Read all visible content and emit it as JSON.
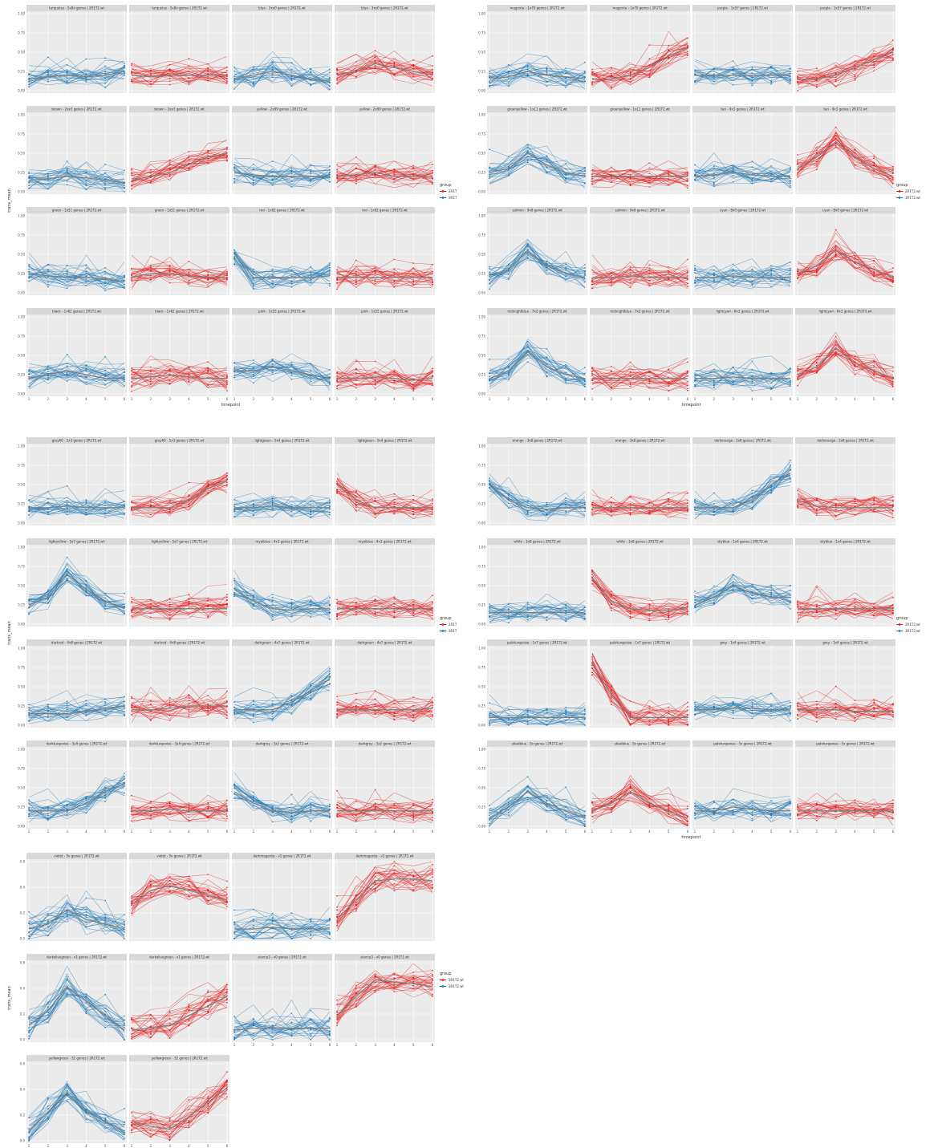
{
  "chart_data": [
    {
      "type": "line",
      "xlabel": "timepoint",
      "ylabel": "trans_mean",
      "x": [
        1,
        2,
        3,
        4,
        5,
        6
      ],
      "ylim": [
        0,
        1
      ],
      "yticks": [
        "0.00",
        "0.25",
        "0.50",
        "0.75",
        "1.00"
      ],
      "legend": {
        "title": "group",
        "entries": [
          "2R1T",
          "3R1T"
        ]
      },
      "panels": [
        {
          "label": "turquoise - 5x8x genes | 2R1T2.wt",
          "group": 1,
          "profile": [
            0.15,
            0.18,
            0.2,
            0.18,
            0.2,
            0.25
          ]
        },
        {
          "label": "turquoise - 5x8x genes | 2R1T2.wt",
          "group": 0,
          "profile": [
            0.2,
            0.18,
            0.2,
            0.2,
            0.2,
            0.2
          ]
        },
        {
          "label": "blue - 3xx0 genes | 2R1T2.wt",
          "group": 1,
          "profile": [
            0.15,
            0.2,
            0.25,
            0.2,
            0.15,
            0.12
          ]
        },
        {
          "label": "blue - 3xx0 genes | 2R1T2.wt",
          "group": 0,
          "profile": [
            0.2,
            0.25,
            0.35,
            0.3,
            0.25,
            0.2
          ]
        },
        {
          "label": "brown - 2xx3 genes | 2R1T2.wt",
          "group": 1,
          "profile": [
            0.15,
            0.17,
            0.2,
            0.18,
            0.15,
            0.12
          ]
        },
        {
          "label": "brown - 2xx3 genes | 2R1T2.wt",
          "group": 0,
          "profile": [
            0.15,
            0.2,
            0.25,
            0.35,
            0.45,
            0.5
          ]
        },
        {
          "label": "yellow - 2x99 genes | 2R1T2.wt",
          "group": 1,
          "profile": [
            0.25,
            0.22,
            0.2,
            0.2,
            0.2,
            0.2
          ]
        },
        {
          "label": "yellow - 2x99 genes | 2R1T2.wt",
          "group": 0,
          "profile": [
            0.2,
            0.22,
            0.25,
            0.2,
            0.2,
            0.2
          ]
        },
        {
          "label": "green - 1x51 genes | 2R1T2.wt",
          "group": 1,
          "profile": [
            0.25,
            0.22,
            0.2,
            0.2,
            0.18,
            0.15
          ]
        },
        {
          "label": "green - 1x51 genes | 2R1T2.wt",
          "group": 0,
          "profile": [
            0.2,
            0.25,
            0.25,
            0.22,
            0.2,
            0.2
          ]
        },
        {
          "label": "red - 1x62 genes | 2R1T2.wt",
          "group": 1,
          "profile": [
            0.5,
            0.2,
            0.2,
            0.2,
            0.2,
            0.22
          ]
        },
        {
          "label": "red - 1x62 genes | 2R1T2.wt",
          "group": 0,
          "profile": [
            0.2,
            0.2,
            0.2,
            0.2,
            0.2,
            0.2
          ]
        },
        {
          "label": "black - 1x62 genes | 2R1T2.wt",
          "group": 1,
          "profile": [
            0.2,
            0.25,
            0.3,
            0.25,
            0.2,
            0.2
          ]
        },
        {
          "label": "black - 1x62 genes | 2R1T2.wt",
          "group": 0,
          "profile": [
            0.2,
            0.22,
            0.25,
            0.22,
            0.2,
            0.2
          ]
        },
        {
          "label": "pink - 1x55 genes | 2R1T2.wt",
          "group": 1,
          "profile": [
            0.3,
            0.3,
            0.35,
            0.3,
            0.25,
            0.2
          ]
        },
        {
          "label": "pink - 1x55 genes | 2R1T2.wt",
          "group": 0,
          "profile": [
            0.2,
            0.2,
            0.22,
            0.2,
            0.18,
            0.2
          ]
        }
      ]
    },
    {
      "type": "line",
      "xlabel": "timepoint",
      "ylabel": "",
      "x": [
        1,
        2,
        3,
        4,
        5,
        6
      ],
      "ylim": [
        0,
        1
      ],
      "yticks": [
        "0.00",
        "0.25",
        "0.50",
        "0.75",
        "1.00"
      ],
      "legend": {
        "title": "group",
        "entries": [
          "2R1T2.wt",
          "3R1T2.wt"
        ]
      },
      "panels": [
        {
          "label": "magenta - 1x70 genes | 2R1T2.wt",
          "group": 1,
          "profile": [
            0.15,
            0.18,
            0.25,
            0.2,
            0.18,
            0.15
          ]
        },
        {
          "label": "magenta - 1x70 genes | 2R1T2.wt",
          "group": 0,
          "profile": [
            0.15,
            0.15,
            0.2,
            0.3,
            0.45,
            0.55
          ]
        },
        {
          "label": "purple - 1x57 genes | 2R1T2.wt",
          "group": 1,
          "profile": [
            0.2,
            0.2,
            0.2,
            0.2,
            0.2,
            0.2
          ]
        },
        {
          "label": "purple - 1x57 genes | 2R1T2.wt",
          "group": 0,
          "profile": [
            0.15,
            0.15,
            0.2,
            0.3,
            0.4,
            0.5
          ]
        },
        {
          "label": "greenyellow - 1x11 genes | 2R1T2.wt",
          "group": 1,
          "profile": [
            0.25,
            0.3,
            0.5,
            0.35,
            0.25,
            0.2
          ]
        },
        {
          "label": "greenyellow - 1x11 genes | 2R1T2.wt",
          "group": 0,
          "profile": [
            0.2,
            0.2,
            0.2,
            0.2,
            0.2,
            0.2
          ]
        },
        {
          "label": "tan - 9x1 genes | 2R1T2.wt",
          "group": 1,
          "profile": [
            0.2,
            0.22,
            0.25,
            0.22,
            0.2,
            0.2
          ]
        },
        {
          "label": "tan - 9x1 genes | 2R1T2.wt",
          "group": 0,
          "profile": [
            0.3,
            0.45,
            0.65,
            0.45,
            0.3,
            0.2
          ]
        },
        {
          "label": "salmon - 9x8 genes | 2R1T2.wt",
          "group": 1,
          "profile": [
            0.2,
            0.3,
            0.55,
            0.35,
            0.25,
            0.2
          ]
        },
        {
          "label": "salmon - 9x8 genes | 2R1T2.wt",
          "group": 0,
          "profile": [
            0.2,
            0.2,
            0.22,
            0.2,
            0.2,
            0.2
          ]
        },
        {
          "label": "cyan - 8x0 genes | 2R1T2.wt",
          "group": 1,
          "profile": [
            0.2,
            0.2,
            0.22,
            0.2,
            0.2,
            0.2
          ]
        },
        {
          "label": "cyan - 8x0 genes | 2R1T2.wt",
          "group": 0,
          "profile": [
            0.25,
            0.35,
            0.55,
            0.4,
            0.3,
            0.2
          ]
        },
        {
          "label": "midnightblue - 7x2 genes | 2R1T2.wt",
          "group": 1,
          "profile": [
            0.2,
            0.3,
            0.55,
            0.35,
            0.25,
            0.2
          ]
        },
        {
          "label": "midnightblue - 7x2 genes | 2R1T2.wt",
          "group": 0,
          "profile": [
            0.2,
            0.2,
            0.2,
            0.2,
            0.2,
            0.2
          ]
        },
        {
          "label": "lightcyan - 6x3 genes | 2R1T2.wt",
          "group": 1,
          "profile": [
            0.2,
            0.2,
            0.22,
            0.2,
            0.2,
            0.2
          ]
        },
        {
          "label": "lightcyan - 6x3 genes | 2R1T2.wt",
          "group": 0,
          "profile": [
            0.25,
            0.35,
            0.6,
            0.4,
            0.3,
            0.2
          ]
        }
      ]
    },
    {
      "type": "line",
      "xlabel": "",
      "ylabel": "trans_mean",
      "x": [
        1,
        2,
        3,
        4,
        5,
        6
      ],
      "ylim": [
        0,
        1
      ],
      "yticks": [
        "0.00",
        "0.25",
        "0.50",
        "0.75",
        "1.00"
      ],
      "legend": {
        "title": "group",
        "entries": [
          "2R1T",
          "3R1T"
        ]
      },
      "panels": [
        {
          "label": "grey60 - 5x3 genes | 2R1T2.wt",
          "group": 1,
          "profile": [
            0.2,
            0.2,
            0.22,
            0.2,
            0.2,
            0.2
          ]
        },
        {
          "label": "grey60 - 5x3 genes | 2R1T2.wt",
          "group": 0,
          "profile": [
            0.2,
            0.2,
            0.2,
            0.3,
            0.45,
            0.55
          ]
        },
        {
          "label": "lightgreen - 5x4 genes | 2R1T2.wt",
          "group": 1,
          "profile": [
            0.2,
            0.2,
            0.22,
            0.2,
            0.2,
            0.2
          ]
        },
        {
          "label": "lightgreen - 5x4 genes | 2R1T2.wt",
          "group": 0,
          "profile": [
            0.5,
            0.3,
            0.2,
            0.2,
            0.2,
            0.2
          ]
        },
        {
          "label": "lightyellow - 5x7 genes | 2R1T2.wt",
          "group": 1,
          "profile": [
            0.25,
            0.35,
            0.65,
            0.45,
            0.3,
            0.2
          ]
        },
        {
          "label": "lightyellow - 5x7 genes | 2R1T2.wt",
          "group": 0,
          "profile": [
            0.2,
            0.2,
            0.2,
            0.2,
            0.2,
            0.2
          ]
        },
        {
          "label": "royalblue - 4x3 genes | 2R1T2.wt",
          "group": 1,
          "profile": [
            0.45,
            0.3,
            0.2,
            0.18,
            0.2,
            0.2
          ]
        },
        {
          "label": "royalblue - 4x3 genes | 2R1T2.wt",
          "group": 0,
          "profile": [
            0.2,
            0.2,
            0.2,
            0.2,
            0.2,
            0.2
          ]
        },
        {
          "label": "darkred - 4x8 genes | 2R1T2.wt",
          "group": 1,
          "profile": [
            0.15,
            0.15,
            0.15,
            0.18,
            0.22,
            0.25
          ]
        },
        {
          "label": "darkred - 4x8 genes | 2R1T2.wt",
          "group": 0,
          "profile": [
            0.2,
            0.2,
            0.22,
            0.25,
            0.25,
            0.25
          ]
        },
        {
          "label": "darkgreen - 4x7 genes | 2R1T2.wt",
          "group": 1,
          "profile": [
            0.2,
            0.2,
            0.2,
            0.3,
            0.45,
            0.6
          ]
        },
        {
          "label": "darkgreen - 4x7 genes | 2R1T2.wt",
          "group": 0,
          "profile": [
            0.2,
            0.2,
            0.2,
            0.2,
            0.2,
            0.22
          ]
        },
        {
          "label": "darkturquoise - 3x4 genes | 2R1T2.wt",
          "group": 1,
          "profile": [
            0.2,
            0.2,
            0.2,
            0.3,
            0.45,
            0.55
          ]
        },
        {
          "label": "darkturquoise - 3x4 genes | 2R1T2.wt",
          "group": 0,
          "profile": [
            0.2,
            0.2,
            0.22,
            0.2,
            0.2,
            0.2
          ]
        },
        {
          "label": "darkgrey - 3x2 genes | 2R1T2.wt",
          "group": 1,
          "profile": [
            0.45,
            0.3,
            0.2,
            0.18,
            0.2,
            0.2
          ]
        },
        {
          "label": "darkgrey - 3x2 genes | 2R1T2.wt",
          "group": 0,
          "profile": [
            0.2,
            0.2,
            0.2,
            0.2,
            0.2,
            0.2
          ]
        }
      ]
    },
    {
      "type": "line",
      "xlabel": "timepoint",
      "ylabel": "",
      "x": [
        1,
        2,
        3,
        4,
        5,
        6
      ],
      "ylim": [
        0,
        1
      ],
      "yticks": [
        "0.00",
        "0.25",
        "0.50",
        "0.75",
        "1.00"
      ],
      "legend": {
        "title": "group",
        "entries": [
          "2R1T2.wt",
          "3R1T2.wt"
        ]
      },
      "panels": [
        {
          "label": "orange - 3x8 genes | 2R1T2.wt",
          "group": 1,
          "profile": [
            0.5,
            0.3,
            0.2,
            0.18,
            0.2,
            0.2
          ]
        },
        {
          "label": "orange - 3x8 genes | 2R1T2.wt",
          "group": 0,
          "profile": [
            0.2,
            0.2,
            0.2,
            0.2,
            0.2,
            0.2
          ]
        },
        {
          "label": "darkorange - 2x8 genes | 2R1T2.wt",
          "group": 1,
          "profile": [
            0.2,
            0.2,
            0.2,
            0.3,
            0.5,
            0.65
          ]
        },
        {
          "label": "darkorange - 2x8 genes | 2R1T2.wt",
          "group": 0,
          "profile": [
            0.3,
            0.22,
            0.2,
            0.2,
            0.2,
            0.2
          ]
        },
        {
          "label": "white - 1x8 genes | 2R1T2.wt",
          "group": 1,
          "profile": [
            0.15,
            0.15,
            0.15,
            0.15,
            0.15,
            0.15
          ]
        },
        {
          "label": "white - 1x8 genes | 2R1T2.wt",
          "group": 0,
          "profile": [
            0.6,
            0.3,
            0.2,
            0.18,
            0.18,
            0.2
          ]
        },
        {
          "label": "skyblue - 1x4 genes | 2R1T2.wt",
          "group": 1,
          "profile": [
            0.25,
            0.35,
            0.5,
            0.4,
            0.35,
            0.35
          ]
        },
        {
          "label": "skyblue - 1x4 genes | 2R1T2.wt",
          "group": 0,
          "profile": [
            0.2,
            0.2,
            0.2,
            0.2,
            0.2,
            0.2
          ]
        },
        {
          "label": "paleturquoise - 1x7 genes | 2R1T2.wt",
          "group": 1,
          "profile": [
            0.1,
            0.1,
            0.1,
            0.1,
            0.1,
            0.1
          ]
        },
        {
          "label": "paleturquoise - 1x7 genes | 2R1T2.wt",
          "group": 0,
          "profile": [
            0.8,
            0.4,
            0.1,
            0.1,
            0.1,
            0.1
          ]
        },
        {
          "label": "grey - 1x4 genes | 2R1T2.wt",
          "group": 1,
          "profile": [
            0.2,
            0.2,
            0.22,
            0.22,
            0.2,
            0.2
          ]
        },
        {
          "label": "grey - 1x4 genes | 2R1T2.wt",
          "group": 0,
          "profile": [
            0.2,
            0.2,
            0.2,
            0.18,
            0.18,
            0.18
          ]
        },
        {
          "label": "steelblue - 9x genes | 2R1T2.wt",
          "group": 1,
          "profile": [
            0.1,
            0.25,
            0.45,
            0.3,
            0.2,
            0.1
          ]
        },
        {
          "label": "steelblue - 9x genes | 2R1T2.wt",
          "group": 0,
          "profile": [
            0.2,
            0.3,
            0.45,
            0.3,
            0.2,
            0.1
          ]
        },
        {
          "label": "paleturquoise - 5x genes | 2R1T2.wt",
          "group": 1,
          "profile": [
            0.2,
            0.2,
            0.25,
            0.22,
            0.2,
            0.2
          ]
        },
        {
          "label": "paleturquoise - 5x genes | 2R1T2.wt",
          "group": 0,
          "profile": [
            0.2,
            0.2,
            0.2,
            0.2,
            0.2,
            0.2
          ]
        }
      ]
    },
    {
      "type": "line",
      "xlabel": "timepoint",
      "ylabel": "trans_mean",
      "x": [
        1,
        2,
        3,
        4,
        5,
        6
      ],
      "ylim": [
        0,
        0.8
      ],
      "yticks": [
        "0.0",
        "0.2",
        "0.4",
        "0.6"
      ],
      "legend": {
        "title": "group",
        "entries": [
          "3R1T2.wt",
          "3R1T2.wt"
        ]
      },
      "panels": [
        {
          "label": "violet - 5x genes | 2R1T2.wt",
          "group": 1,
          "profile": [
            0.1,
            0.15,
            0.3,
            0.2,
            0.15,
            0.1
          ]
        },
        {
          "label": "violet - 5x genes | 2R1T2.wt",
          "group": 0,
          "profile": [
            0.35,
            0.5,
            0.55,
            0.5,
            0.45,
            0.4
          ]
        },
        {
          "label": "darkmagenta - x1 genes | 2R1T2.wt",
          "group": 1,
          "profile": [
            0.1,
            0.1,
            0.12,
            0.1,
            0.1,
            0.1
          ]
        },
        {
          "label": "darkmagenta - x1 genes | 2R1T2.wt",
          "group": 0,
          "profile": [
            0.2,
            0.4,
            0.6,
            0.62,
            0.62,
            0.6
          ]
        },
        {
          "label": "darkolivegreen - x1 genes | 2R1T2.wt",
          "group": 1,
          "profile": [
            0.15,
            0.3,
            0.55,
            0.4,
            0.25,
            0.1
          ]
        },
        {
          "label": "darkolivegreen - x1 genes | 2R1T2.wt",
          "group": 0,
          "profile": [
            0.1,
            0.12,
            0.15,
            0.25,
            0.35,
            0.45
          ]
        },
        {
          "label": "sienna3 - x0 genes | 2R1T2.wt",
          "group": 1,
          "profile": [
            0.1,
            0.12,
            0.12,
            0.12,
            0.12,
            0.12
          ]
        },
        {
          "label": "sienna3 - x0 genes | 2R1T2.wt",
          "group": 0,
          "profile": [
            0.25,
            0.45,
            0.62,
            0.6,
            0.58,
            0.55
          ]
        },
        {
          "label": "yellowgreen - 32 genes | 2R1T2.wt",
          "group": 1,
          "profile": [
            0.1,
            0.3,
            0.5,
            0.3,
            0.2,
            0.1
          ]
        },
        {
          "label": "yellowgreen - 32 genes | 2R1T2.wt",
          "group": 0,
          "profile": [
            0.2,
            0.15,
            0.12,
            0.25,
            0.4,
            0.55
          ]
        }
      ]
    }
  ]
}
